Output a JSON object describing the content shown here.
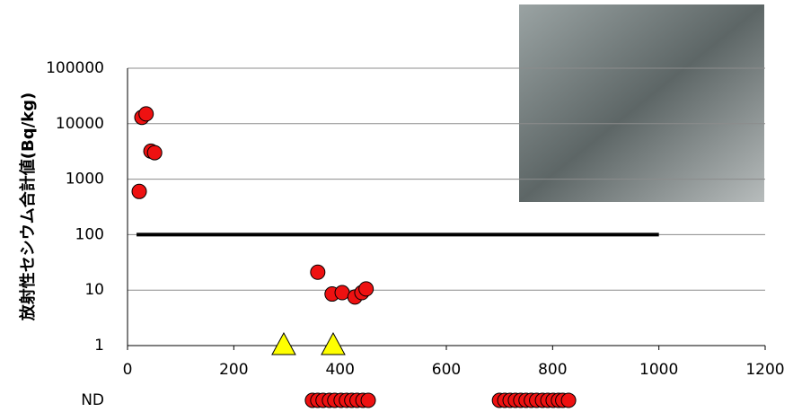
{
  "chart_data": {
    "type": "scatter",
    "ylabel": "放射性セシウム合計値(Bq/kg)",
    "xlim": [
      0,
      1200
    ],
    "xticks": [
      0,
      200,
      400,
      600,
      800,
      1000,
      1200
    ],
    "ylim": [
      1,
      100000
    ],
    "yticks": [
      1,
      10,
      100,
      1000,
      10000,
      100000
    ],
    "log_y": true,
    "grid": true,
    "nd_label": "ND",
    "series": [
      {
        "marker": "circle",
        "color": "#ee1111",
        "x": [
          22,
          27,
          35,
          44,
          51,
          358,
          385,
          404,
          428,
          441,
          449
        ],
        "values": [
          600,
          13000,
          15000,
          3200,
          3000,
          21,
          8.5,
          9,
          7.5,
          9,
          10.5
        ]
      },
      {
        "marker": "triangle",
        "color": "#ffff00",
        "x": [
          294,
          387
        ],
        "values": [
          1,
          1
        ]
      },
      {
        "marker": "line",
        "color": "#000000",
        "x": [
          17,
          1000
        ],
        "values": [
          100,
          100
        ]
      }
    ],
    "nd_series": {
      "marker": "circle",
      "color": "#ee1111",
      "x": [
        348,
        358,
        368,
        380,
        390,
        402,
        412,
        422,
        432,
        443,
        453,
        700,
        710,
        720,
        730,
        740,
        750,
        760,
        770,
        781,
        791,
        801,
        811,
        819,
        830
      ]
    }
  }
}
